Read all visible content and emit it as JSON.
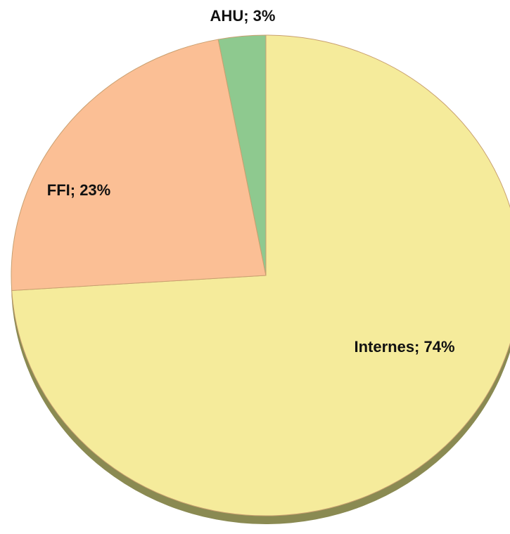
{
  "chart_data": {
    "type": "pie",
    "values": [
      74,
      23,
      3
    ],
    "value_labels": [
      "Internes; 74%",
      "FFI; 23%",
      "AHU; 3%"
    ],
    "colors": [
      "#f5eb9b",
      "#fbbf95",
      "#8ec98f"
    ]
  }
}
